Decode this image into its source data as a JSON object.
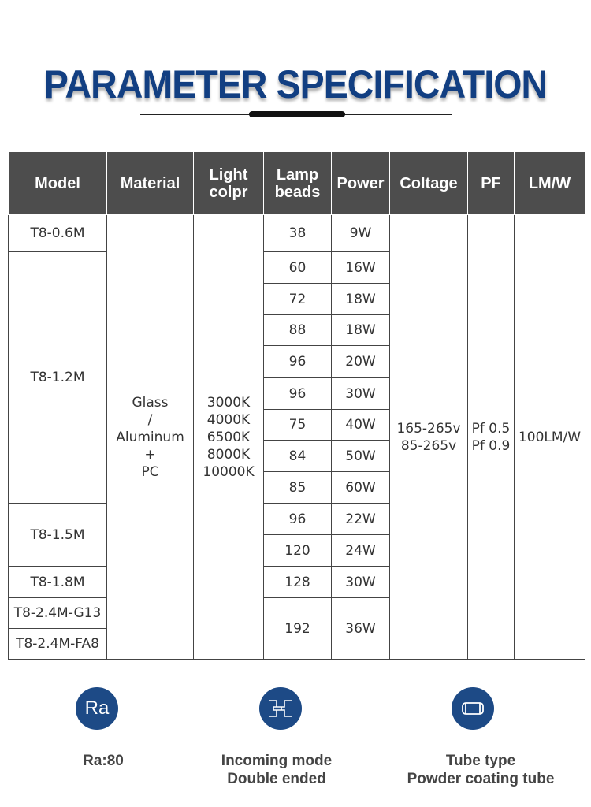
{
  "title": "PARAMETER SPECIFICATION",
  "colors": {
    "title": "#123f82",
    "header_bg": "#4d4d4d",
    "icon_bg": "#1d4a86"
  },
  "headers": {
    "model": "Model",
    "material": "Material",
    "light_color": [
      "Light",
      "colpr"
    ],
    "lamp_beads": [
      "Lamp",
      "beads"
    ],
    "power": "Power",
    "voltage": "Coltage",
    "pf": "PF",
    "lmw": "LM/W"
  },
  "models": [
    "T8-0.6M",
    "T8-1.2M",
    "T8-1.5M",
    "T8-1.8M",
    "T8-2.4M-G13",
    "T8-2.4M-FA8"
  ],
  "material": [
    "Glass",
    "/",
    "Aluminum",
    "+",
    "PC"
  ],
  "light_colors": [
    "3000K",
    "4000K",
    "6500K",
    "8000K",
    "10000K"
  ],
  "rows": [
    {
      "beads": "38",
      "power": "9W"
    },
    {
      "beads": "60",
      "power": "16W"
    },
    {
      "beads": "72",
      "power": "18W"
    },
    {
      "beads": "88",
      "power": "18W"
    },
    {
      "beads": "96",
      "power": "20W"
    },
    {
      "beads": "96",
      "power": "30W"
    },
    {
      "beads": "75",
      "power": "40W"
    },
    {
      "beads": "84",
      "power": "50W"
    },
    {
      "beads": "85",
      "power": "60W"
    },
    {
      "beads": "96",
      "power": "22W"
    },
    {
      "beads": "120",
      "power": "24W"
    },
    {
      "beads": "128",
      "power": "30W"
    },
    {
      "beads": "192",
      "power": "36W"
    }
  ],
  "voltage": [
    "165-265v",
    "85-265v"
  ],
  "pf": [
    "Pf 0.5",
    "Pf 0.9"
  ],
  "lmw": "100LM/W",
  "features": [
    {
      "icon": "ra-icon",
      "icon_text": "Ra",
      "lines": [
        "Ra:80"
      ]
    },
    {
      "icon": "double-ended-icon",
      "lines": [
        "Incoming mode",
        "Double ended"
      ]
    },
    {
      "icon": "tube-icon",
      "lines": [
        "Tube type",
        "Powder coating tube"
      ]
    }
  ]
}
